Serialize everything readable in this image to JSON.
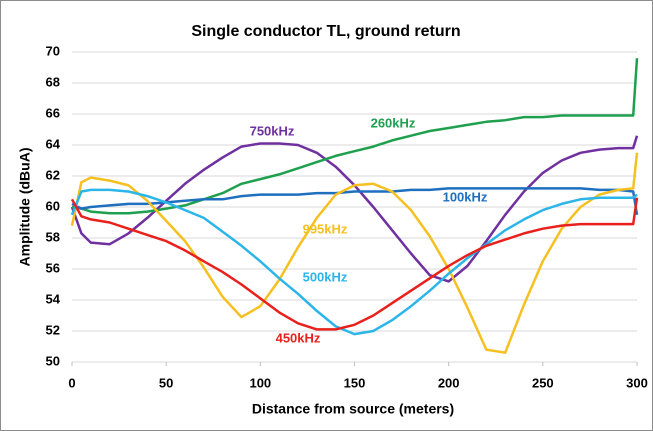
{
  "chart_data": {
    "type": "line",
    "title": "Single conductor TL, ground return",
    "x_label": "Distance from source (meters)",
    "y_label": "Amplitude (dBuA)",
    "x": [
      0,
      5,
      10,
      20,
      30,
      40,
      50,
      60,
      70,
      80,
      90,
      100,
      110,
      120,
      130,
      140,
      150,
      160,
      170,
      180,
      190,
      200,
      210,
      220,
      230,
      240,
      250,
      260,
      270,
      280,
      290,
      298,
      300
    ],
    "xlim": [
      0,
      300
    ],
    "xticks": [
      0,
      50,
      100,
      150,
      200,
      250,
      300
    ],
    "ylim": [
      50,
      70
    ],
    "yticks": [
      50,
      52,
      54,
      56,
      58,
      60,
      62,
      64,
      66,
      68,
      70
    ],
    "grid": true,
    "series": [
      {
        "name": "750kHz",
        "color": "#7030a0",
        "values": [
          60.0,
          58.3,
          57.7,
          57.6,
          58.3,
          59.3,
          60.4,
          61.5,
          62.4,
          63.2,
          63.9,
          64.1,
          64.1,
          64.0,
          63.5,
          62.6,
          61.4,
          60.0,
          58.5,
          57.0,
          55.6,
          55.2,
          56.2,
          57.8,
          59.5,
          61.0,
          62.2,
          63.0,
          63.5,
          63.7,
          63.8,
          63.8,
          64.6
        ]
      },
      {
        "name": "260kHz",
        "color": "#1fa04f",
        "values": [
          60.0,
          59.9,
          59.7,
          59.6,
          59.6,
          59.7,
          59.9,
          60.1,
          60.5,
          60.9,
          61.5,
          61.8,
          62.1,
          62.5,
          62.9,
          63.3,
          63.6,
          63.9,
          64.3,
          64.6,
          64.9,
          65.1,
          65.3,
          65.5,
          65.6,
          65.8,
          65.8,
          65.9,
          65.9,
          65.9,
          65.9,
          65.9,
          69.6
        ]
      },
      {
        "name": "100kHz",
        "color": "#1f6fbf",
        "values": [
          60.2,
          59.9,
          60.0,
          60.1,
          60.2,
          60.2,
          60.3,
          60.4,
          60.5,
          60.5,
          60.7,
          60.8,
          60.8,
          60.8,
          60.9,
          60.9,
          61.0,
          61.0,
          61.0,
          61.1,
          61.1,
          61.2,
          61.2,
          61.2,
          61.2,
          61.2,
          61.2,
          61.2,
          61.2,
          61.1,
          61.1,
          61.0,
          59.5
        ]
      },
      {
        "name": "995kHz",
        "color": "#f5c020",
        "values": [
          58.8,
          61.6,
          61.9,
          61.7,
          61.4,
          60.4,
          59.1,
          57.8,
          56.1,
          54.2,
          52.9,
          53.6,
          55.3,
          57.4,
          59.3,
          60.8,
          61.4,
          61.5,
          61.0,
          59.8,
          58.1,
          56.0,
          53.5,
          50.8,
          50.6,
          53.7,
          56.5,
          58.6,
          60.0,
          60.8,
          61.1,
          61.2,
          63.5
        ]
      },
      {
        "name": "500kHz",
        "color": "#2cb5e8",
        "values": [
          59.5,
          61.0,
          61.1,
          61.1,
          61.0,
          60.7,
          60.3,
          59.8,
          59.3,
          58.4,
          57.5,
          56.5,
          55.4,
          54.4,
          53.3,
          52.3,
          51.8,
          52.0,
          52.7,
          53.6,
          54.6,
          55.7,
          56.7,
          57.6,
          58.5,
          59.2,
          59.8,
          60.2,
          60.5,
          60.6,
          60.6,
          60.6,
          60.8
        ]
      },
      {
        "name": "450kHz",
        "color": "#e8211c",
        "values": [
          60.5,
          59.4,
          59.2,
          59.0,
          58.6,
          58.2,
          57.8,
          57.2,
          56.5,
          55.8,
          55.0,
          54.1,
          53.2,
          52.5,
          52.1,
          52.1,
          52.4,
          53.0,
          53.8,
          54.6,
          55.4,
          56.2,
          56.9,
          57.5,
          57.9,
          58.3,
          58.6,
          58.8,
          58.9,
          58.9,
          58.9,
          58.9,
          60.6
        ]
      }
    ]
  }
}
